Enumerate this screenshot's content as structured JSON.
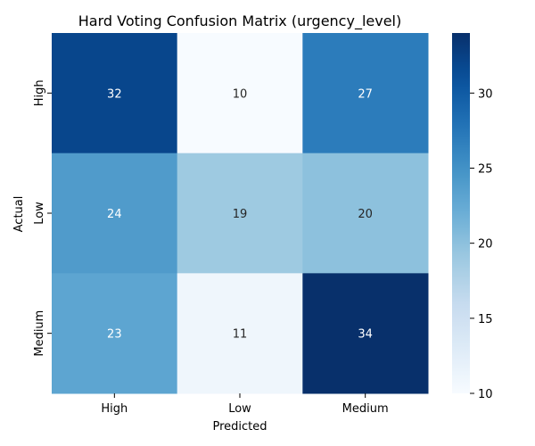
{
  "chart_data": {
    "type": "heatmap",
    "title": "Hard Voting Confusion Matrix (urgency_level)",
    "xlabel": "Predicted",
    "ylabel": "Actual",
    "x_categories": [
      "High",
      "Low",
      "Medium"
    ],
    "y_categories": [
      "High",
      "Low",
      "Medium"
    ],
    "values": [
      [
        32,
        10,
        27
      ],
      [
        24,
        19,
        20
      ],
      [
        23,
        11,
        34
      ]
    ],
    "colorbar": {
      "min": 10,
      "max": 34,
      "ticks": [
        "10",
        "15",
        "20",
        "25",
        "30"
      ],
      "colormap": "Blues"
    },
    "annotations": true,
    "grid": false,
    "legend": "colorbar-right"
  }
}
